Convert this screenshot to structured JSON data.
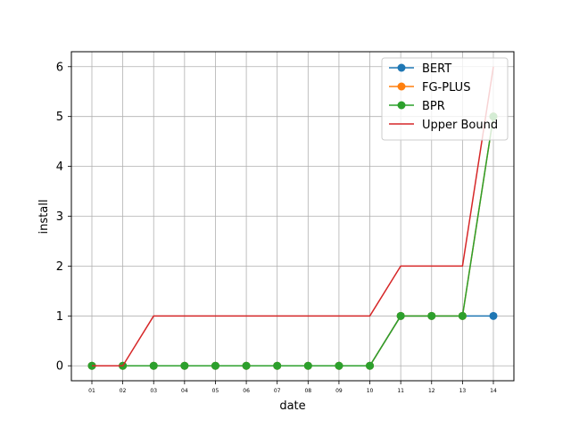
{
  "chart_data": {
    "type": "line",
    "xlabel": "date",
    "ylabel": "install",
    "categories": [
      "01",
      "02",
      "03",
      "04",
      "05",
      "06",
      "07",
      "08",
      "09",
      "10",
      "11",
      "12",
      "13",
      "14"
    ],
    "ylim": [
      -0.3,
      6.3
    ],
    "yticks": [
      0,
      1,
      2,
      3,
      4,
      5,
      6
    ],
    "grid": true,
    "legend_position": "top-right",
    "series": [
      {
        "name": "BERT",
        "color": "#1f77b4",
        "marker": "circle",
        "values": [
          0,
          0,
          0,
          0,
          0,
          0,
          0,
          0,
          0,
          0,
          1,
          1,
          1,
          1
        ]
      },
      {
        "name": "FG-PLUS",
        "color": "#ff7f0e",
        "marker": "circle",
        "values": [
          0,
          0,
          0,
          0,
          0,
          0,
          0,
          0,
          0,
          0,
          1,
          1,
          1,
          5
        ]
      },
      {
        "name": "BPR",
        "color": "#2ca02c",
        "marker": "circle",
        "values": [
          0,
          0,
          0,
          0,
          0,
          0,
          0,
          0,
          0,
          0,
          1,
          1,
          1,
          5
        ]
      },
      {
        "name": "Upper Bound",
        "color": "#d62728",
        "marker": "none",
        "values": [
          0,
          0,
          1,
          1,
          1,
          1,
          1,
          1,
          1,
          1,
          2,
          2,
          2,
          6
        ]
      }
    ]
  }
}
